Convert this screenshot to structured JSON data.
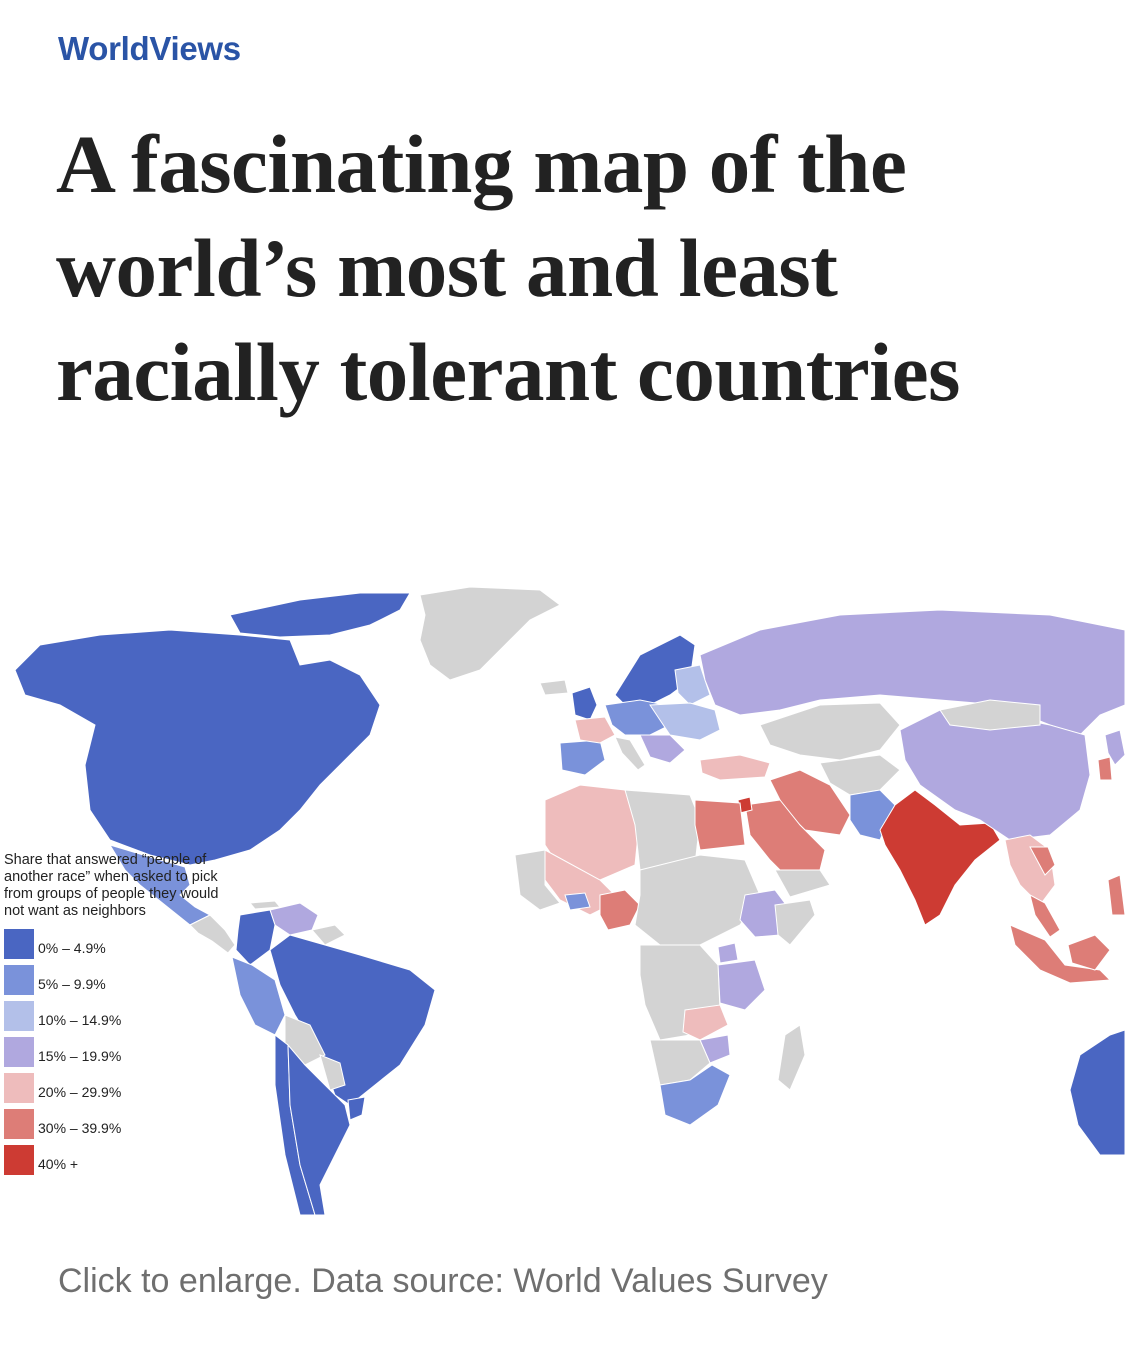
{
  "section_label": "WorldViews",
  "headline": "A fascinating map of the world’s most and least racially tolerant countries",
  "legend": {
    "description": "Share that answered “people of another race” when asked to pick from groups of people they would not want as neighbors",
    "items": [
      {
        "label": "0% – 4.9%",
        "color": "#4a66c2"
      },
      {
        "label": "5% – 9.9%",
        "color": "#7a92da"
      },
      {
        "label": "10% – 14.9%",
        "color": "#b3c0e9"
      },
      {
        "label": "15% – 19.9%",
        "color": "#b0a8df"
      },
      {
        "label": "20% – 29.9%",
        "color": "#eebcbc"
      },
      {
        "label": "30% – 39.9%",
        "color": "#dd7d77"
      },
      {
        "label": "40% +",
        "color": "#cd3b33"
      }
    ],
    "no_data_color": "#d3d3d3"
  },
  "caption": "Click to enlarge. Data source: World Values Survey",
  "colors": {
    "accent": "#2a54a6",
    "headline_text": "#222222",
    "caption_text": "#6f6f6f"
  }
}
